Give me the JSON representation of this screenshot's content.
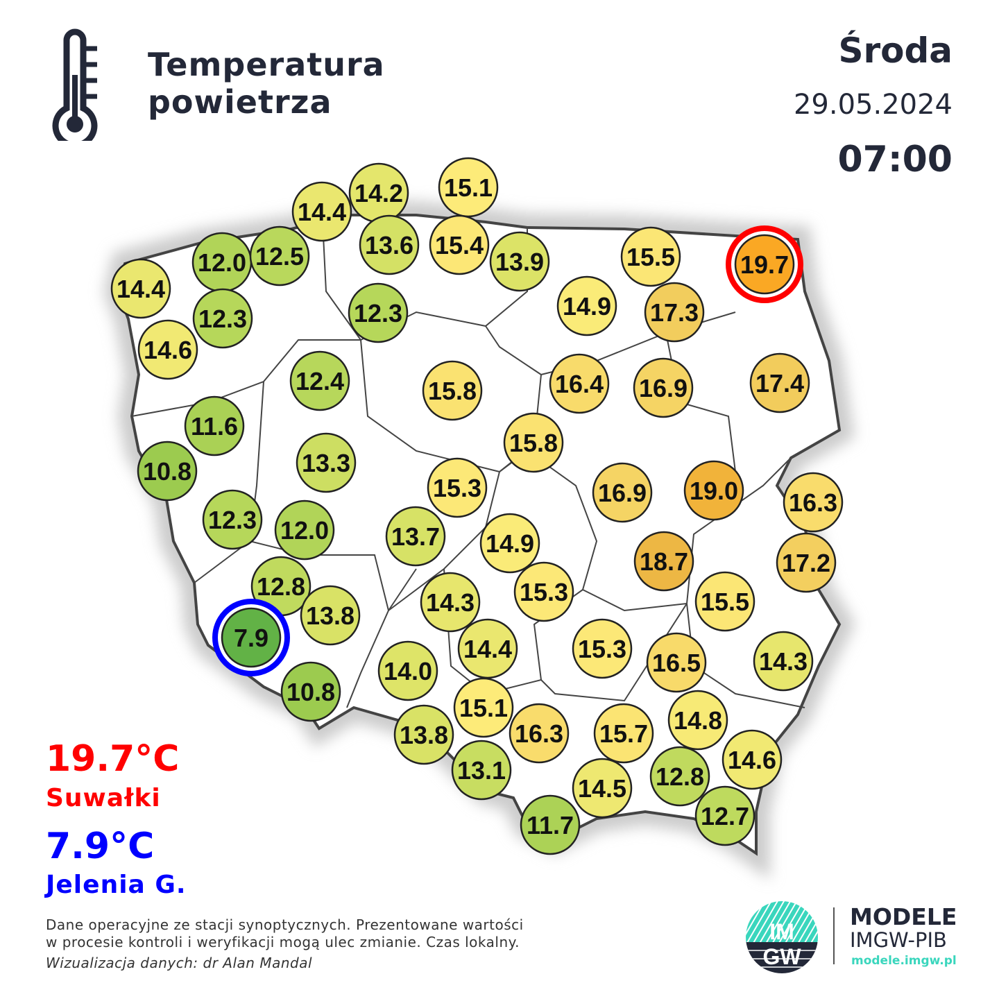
{
  "header": {
    "title_line1": "Temperatura",
    "title_line2": "powietrza",
    "icon": "thermometer-icon"
  },
  "datetime": {
    "day": "Środa",
    "date": "29.05.2024",
    "time": "07:00"
  },
  "extremes": {
    "max": {
      "value": "19.7°C",
      "station": "Suwałki",
      "color": "#ff0000"
    },
    "min": {
      "value": "7.9°C",
      "station": "Jelenia G.",
      "color": "#0000ff"
    }
  },
  "footer": {
    "note_line1": "Dane operacyjne ze stacji synoptycznych. Prezentowane wartości",
    "note_line2": "w procesie kontroli i weryfikacji mogą ulec zmianie. Czas lokalny.",
    "credit": "Wizualizacja danych: dr Alan Mandal"
  },
  "brand": {
    "logo_text": "IMGW",
    "line1": "MODELE",
    "line2": "IMGW-PIB",
    "url": "modele.imgw.pl",
    "accent": "#3ad6bd"
  },
  "stations": [
    "14.2",
    "15.1",
    "14.4",
    "13.6",
    "15.4",
    "12.0",
    "12.5",
    "13.9",
    "15.5",
    "19.7",
    "14.4",
    "12.3",
    "12.3",
    "14.9",
    "17.3",
    "14.6",
    "12.4",
    "15.8",
    "16.4",
    "16.9",
    "17.4",
    "11.6",
    "15.8",
    "10.8",
    "13.3",
    "15.3",
    "16.9",
    "19.0",
    "16.3",
    "12.3",
    "12.0",
    "13.7",
    "14.9",
    "18.7",
    "17.2",
    "12.8",
    "15.3",
    "14.3",
    "15.5",
    "13.8",
    "7.9",
    "14.4",
    "15.3",
    "16.5",
    "14.3",
    "14.0",
    "10.8",
    "15.1",
    "16.3",
    "14.8",
    "15.7",
    "13.8",
    "14.6",
    "13.1",
    "12.8",
    "14.5",
    "12.7",
    "11.7"
  ]
}
